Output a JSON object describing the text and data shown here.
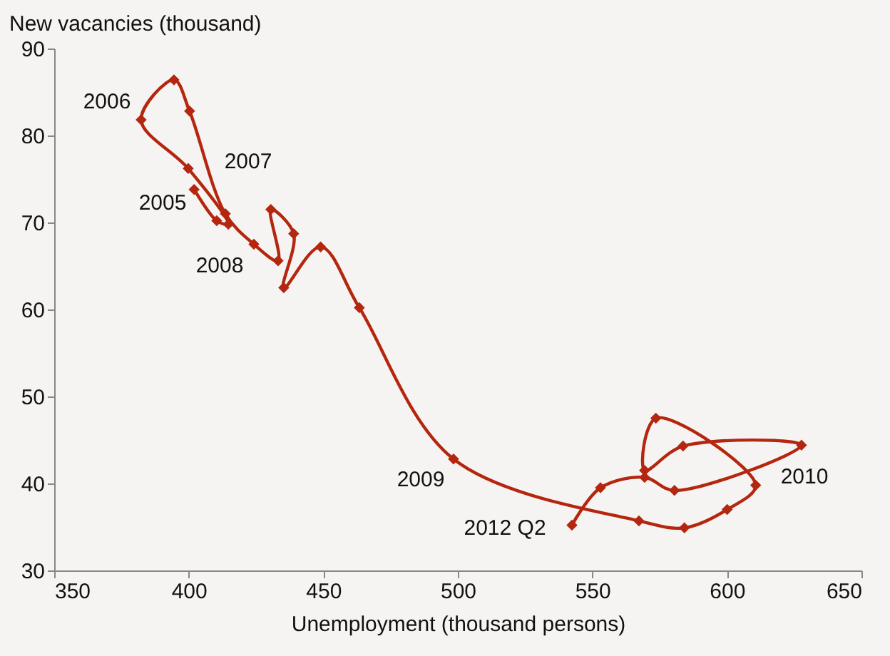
{
  "chart_data": {
    "type": "line",
    "xlabel": "Unemployment (thousand persons)",
    "ylabel": "New vacancies (thousand)",
    "x": [
      402,
      410.4,
      414.7,
      399.8,
      382.3,
      394.5,
      400.3,
      413.6,
      424.2,
      433.2,
      430.5,
      439,
      435.3,
      449,
      463.4,
      498.4,
      567.3,
      584.2,
      600.1,
      610.7,
      573.6,
      569.4,
      583.7,
      627.7,
      580.5,
      569.4,
      553,
      542.4
    ],
    "series": [
      {
        "color": "#b5260f",
        "values": [
          73.8,
          70.2,
          69.8,
          76.2,
          81.8,
          86.4,
          82.8,
          71,
          67.5,
          65.6,
          71.5,
          68.7,
          62.5,
          67.2,
          60.2,
          42.8,
          35.7,
          34.9,
          37,
          39.8,
          47.5,
          41.5,
          44.3,
          44.4,
          39.2,
          40.7,
          39.5,
          35.2
        ]
      }
    ],
    "xlim": [
      350,
      650
    ],
    "xticks": [
      350,
      400,
      450,
      500,
      550,
      600,
      650
    ],
    "ylim": [
      30,
      90
    ],
    "yticks": [
      30,
      40,
      50,
      60,
      70,
      80,
      90
    ],
    "marker": "diamond",
    "grid": false,
    "annotations": [
      "2006",
      "2007",
      "2005",
      "2008",
      "2009",
      "2012 Q2",
      "2010"
    ]
  }
}
